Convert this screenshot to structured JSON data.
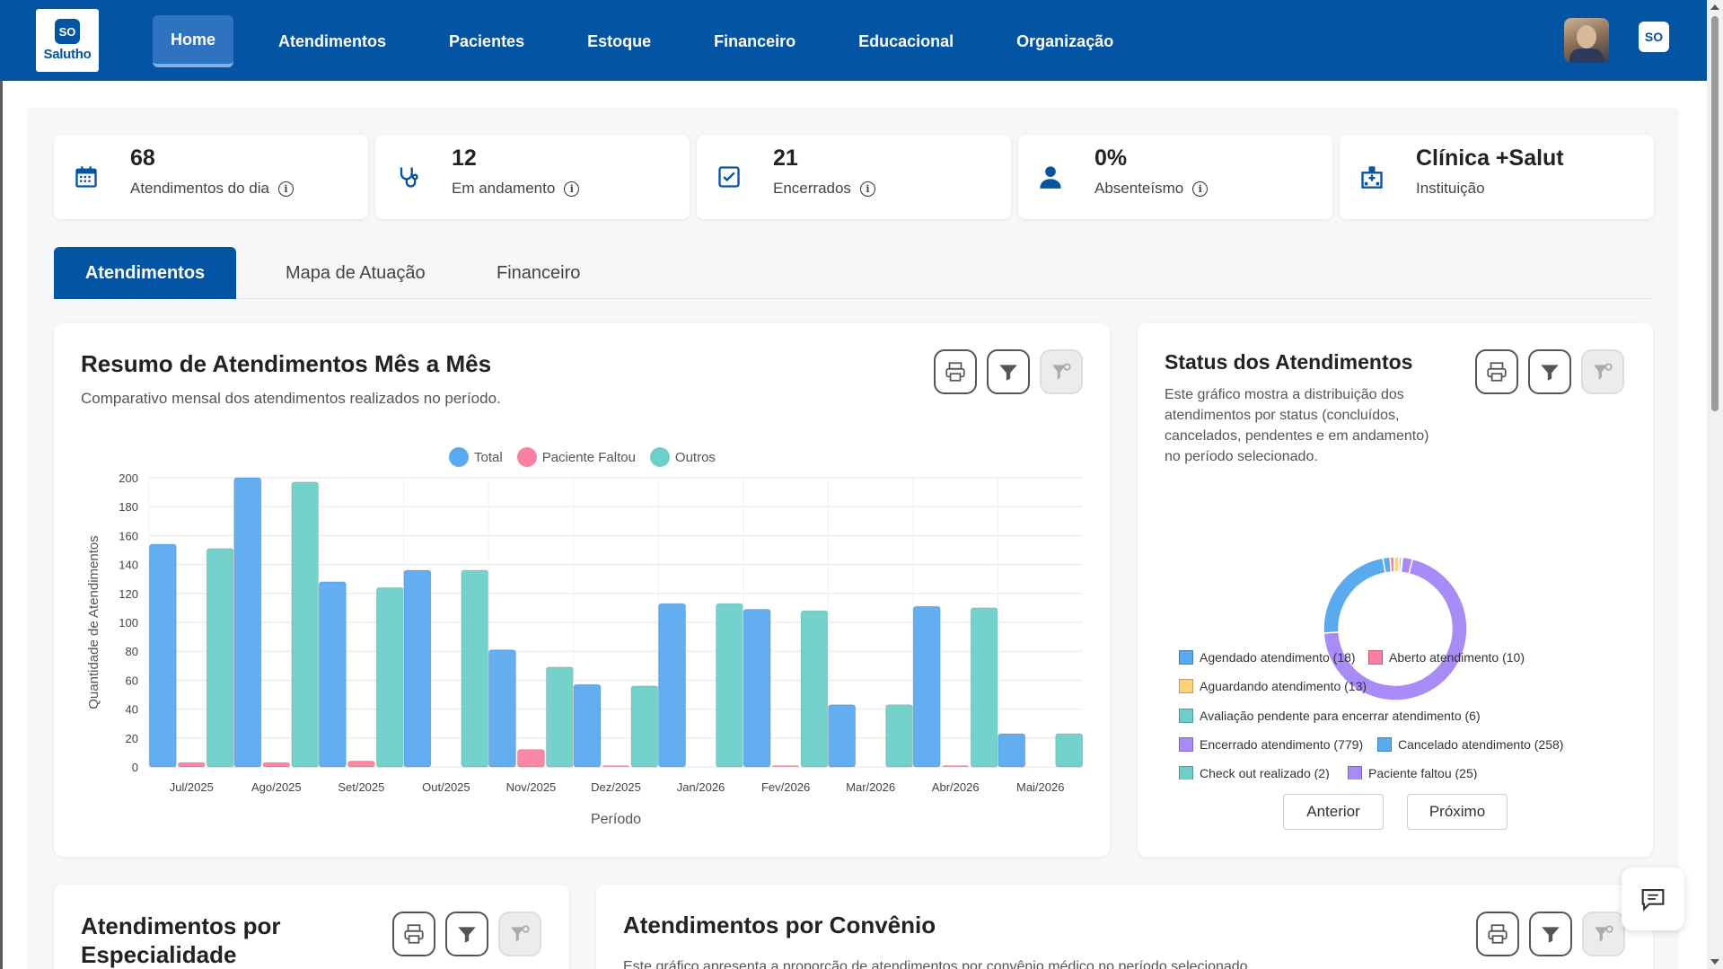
{
  "brand": {
    "logo_text": "Salutho"
  },
  "nav": {
    "items": [
      "Home",
      "Atendimentos",
      "Pacientes",
      "Estoque",
      "Financeiro",
      "Educacional",
      "Organização"
    ]
  },
  "stats": [
    {
      "value": "68",
      "label": "Atendimentos do dia",
      "icon": "calendar-icon"
    },
    {
      "value": "12",
      "label": "Em andamento",
      "icon": "stethoscope-icon"
    },
    {
      "value": "21",
      "label": "Encerrados",
      "icon": "checkbox-icon"
    },
    {
      "value": "0%",
      "label": "Absenteísmo",
      "icon": "user-icon"
    },
    {
      "value": "Clínica +Salut",
      "label": "Instituição",
      "icon": "hospital-icon"
    }
  ],
  "tabs": [
    "Atendimentos",
    "Mapa de Atuação",
    "Financeiro"
  ],
  "monthly_card": {
    "title": "Resumo de Atendimentos Mês a Mês",
    "subtitle": "Comparativo mensal dos atendimentos realizados no período."
  },
  "status_card": {
    "title": "Status dos Atendimentos",
    "subtitle": "Este gráfico mostra a distribuição dos atendimentos por status (concluídos, cancelados, pendentes e em andamento) no período selecionado.",
    "prev_label": "Anterior",
    "next_label": "Próximo",
    "legend": [
      {
        "label": "Agendado atendimento (18)",
        "color": "#5aaaf0"
      },
      {
        "label": "Aberto atendimento (10)",
        "color": "#fb7fa0"
      },
      {
        "label": "Aguardando atendimento (13)",
        "color": "#ffd27a"
      },
      {
        "label": "Avaliação pendente para encerrar atendimento (6)",
        "color": "#6ecfc9"
      },
      {
        "label": "Encerrado atendimento (779)",
        "color": "#a98bf7"
      },
      {
        "label": "Cancelado atendimento (258)",
        "color": "#5aaaf0"
      },
      {
        "label": "Check out realizado (2)",
        "color": "#6ecfc9"
      },
      {
        "label": "Paciente faltou (25)",
        "color": "#a98bf7"
      }
    ]
  },
  "specialty_card": {
    "title_line1": "Atendimentos por",
    "title_line2": "Especialidade"
  },
  "insurance_card": {
    "title": "Atendimentos por Convênio",
    "subtitle": "Este gráfico apresenta a proporção de atendimentos por convênio médico no período selecionado."
  },
  "chart_data": [
    {
      "type": "bar",
      "xlabel": "Período",
      "ylabel": "Quantidade de Atendimentos",
      "ylim": [
        0,
        200
      ],
      "yticks": [
        0,
        20,
        40,
        60,
        80,
        100,
        120,
        140,
        160,
        180,
        200
      ],
      "legend_position": "top",
      "grid": true,
      "categories": [
        "Jul/2025",
        "Ago/2025",
        "Set/2025",
        "Out/2025",
        "Nov/2025",
        "Dez/2025",
        "Jan/2026",
        "Fev/2026",
        "Mar/2026",
        "Abr/2026",
        "Mai/2026"
      ],
      "series": [
        {
          "name": "Total",
          "color": "#5aaaf0",
          "values": [
            154,
            200,
            128,
            136,
            81,
            57,
            113,
            109,
            43,
            111,
            23
          ]
        },
        {
          "name": "Paciente Faltou",
          "color": "#fb7fa0",
          "values": [
            3,
            3,
            4,
            0,
            12,
            1,
            0,
            1,
            0,
            1,
            0
          ]
        },
        {
          "name": "Outros",
          "color": "#6ecfc9",
          "values": [
            151,
            197,
            124,
            136,
            69,
            56,
            113,
            108,
            43,
            110,
            23
          ]
        }
      ]
    },
    {
      "type": "pie",
      "variant": "doughnut",
      "categories": [
        "Agendado atendimento",
        "Aberto atendimento",
        "Aguardando atendimento",
        "Avaliação pendente para encerrar atendimento",
        "Encerrado atendimento",
        "Cancelado atendimento",
        "Check out realizado",
        "Paciente faltou"
      ],
      "values": [
        18,
        10,
        13,
        6,
        779,
        258,
        2,
        25
      ],
      "colors": [
        "#5aaaf0",
        "#fb7fa0",
        "#ffd27a",
        "#6ecfc9",
        "#a98bf7",
        "#5aaaf0",
        "#6ecfc9",
        "#a98bf7"
      ]
    }
  ]
}
